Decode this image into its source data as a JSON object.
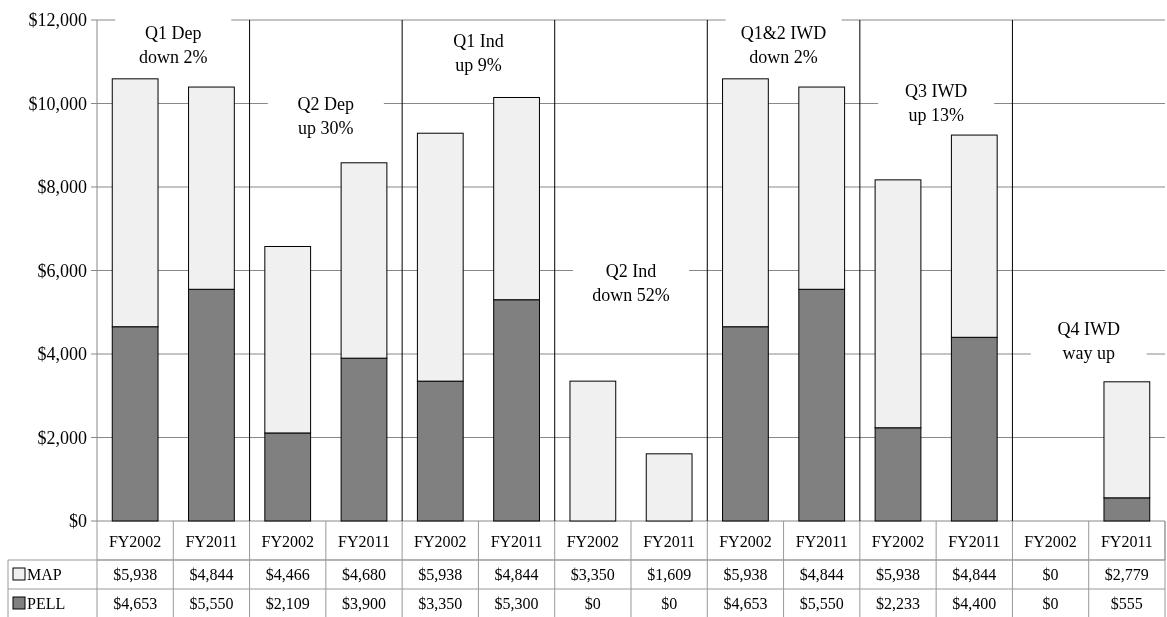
{
  "chart_data": {
    "type": "bar",
    "stacked": true,
    "legend": "bottom left",
    "grid": "y",
    "categories": [
      "FY2002",
      "FY2011",
      "FY2002",
      "FY2011",
      "FY2002",
      "FY2011",
      "FY2002",
      "FY2011",
      "FY2002",
      "FY2011",
      "FY2002",
      "FY2011",
      "FY2002",
      "FY2011"
    ],
    "series": [
      {
        "name": "PELL",
        "color": "#808080",
        "values": [
          4653,
          5550,
          2109,
          3900,
          3350,
          5300,
          0,
          0,
          4653,
          5550,
          2233,
          4400,
          0,
          555
        ],
        "value_labels": [
          "$4,653",
          "$5,550",
          "$2,109",
          "$3,900",
          "$3,350",
          "$5,300",
          "$0",
          "$0",
          "$4,653",
          "$5,550",
          "$2,233",
          "$4,400",
          "$0",
          "$555"
        ]
      },
      {
        "name": "MAP",
        "color": "#f0f0f0",
        "values": [
          5938,
          4844,
          4466,
          4680,
          5938,
          4844,
          3350,
          1609,
          5938,
          4844,
          5938,
          4844,
          0,
          2779
        ],
        "value_labels": [
          "$5,938",
          "$4,844",
          "$4,466",
          "$4,680",
          "$5,938",
          "$4,844",
          "$3,350",
          "$1,609",
          "$5,938",
          "$4,844",
          "$5,938",
          "$4,844",
          "$0",
          "$2,779"
        ]
      }
    ],
    "ylim": [
      0,
      12000
    ],
    "yticks": [
      {
        "value": 0,
        "label": "$0"
      },
      {
        "value": 2000,
        "label": "$2,000"
      },
      {
        "value": 4000,
        "label": "$4,000"
      },
      {
        "value": 6000,
        "label": "$6,000"
      },
      {
        "value": 8000,
        "label": "$8,000"
      },
      {
        "value": 10000,
        "label": "$10,000"
      },
      {
        "value": 12000,
        "label": "$12,000"
      }
    ],
    "annotations": [
      "Q1 Dep\ndown 2%",
      "Q2 Dep\nup 30%",
      "Q1 Ind\nup 9%",
      "Q2 Ind\ndown 52%",
      "Q1&2 IWD\ndown 2%",
      "Q3 IWD\nup 13%",
      "Q4 IWD\nway up"
    ]
  }
}
